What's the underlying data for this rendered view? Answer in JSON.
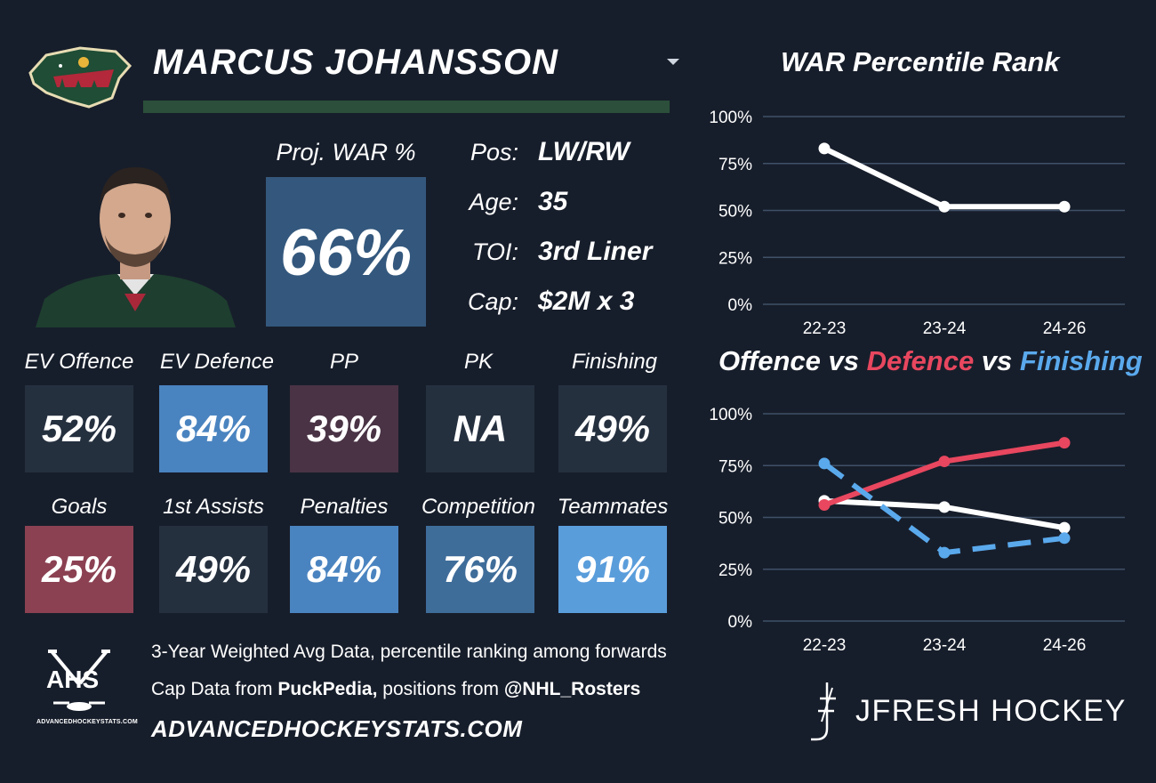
{
  "header": {
    "player_name": "MARCUS JOHANSSON",
    "team_logo_icon": "wild-logo-icon",
    "photo": "player-headshot"
  },
  "war": {
    "label": "Proj. WAR %",
    "value": "66%",
    "color": "#34587d"
  },
  "info": [
    {
      "label": "Pos:",
      "value": "LW/RW"
    },
    {
      "label": "Age:",
      "value": "35"
    },
    {
      "label": "TOI:",
      "value": "3rd Liner"
    },
    {
      "label": "Cap:",
      "value": "$2M x 3"
    }
  ],
  "stats_row1": [
    {
      "label": "EV Offence",
      "value": "52%",
      "color": "#25303f"
    },
    {
      "label": "EV Defence",
      "value": "84%",
      "color": "#4a84c0"
    },
    {
      "label": "PP",
      "value": "39%",
      "color": "#4a3345"
    },
    {
      "label": "PK",
      "value": "NA",
      "color": "#25303f"
    },
    {
      "label": "Finishing",
      "value": "49%",
      "color": "#25303f"
    }
  ],
  "stats_row2": [
    {
      "label": "Goals",
      "value": "25%",
      "color": "#8b4152"
    },
    {
      "label": "1st Assists",
      "value": "49%",
      "color": "#25303f"
    },
    {
      "label": "Penalties",
      "value": "84%",
      "color": "#4a84c0"
    },
    {
      "label": "Competition",
      "value": "76%",
      "color": "#3f6d9a"
    },
    {
      "label": "Teammates",
      "value": "91%",
      "color": "#5a9ddb"
    }
  ],
  "footer": {
    "line1": "3-Year Weighted Avg Data, percentile ranking among forwards",
    "line2_prefix": "Cap Data from ",
    "line2_bold1": "PuckPedia,",
    "line2_mid": " positions from ",
    "line2_bold2": "@NHL_Rosters",
    "url": "ADVANCEDHOCKEYSTATS.COM",
    "ahs_logo_text": "AHS",
    "ahs_logo_site": "ADVANCEDHOCKEYSTATS.COM",
    "brand": "JFRESH HOCKEY"
  },
  "chart_data": [
    {
      "type": "line",
      "title": "WAR Percentile Rank",
      "categories": [
        "22-23",
        "23-24",
        "24-26"
      ],
      "y_ticks": [
        "100%",
        "75%",
        "50%",
        "25%",
        "0%"
      ],
      "ylim": [
        0,
        100
      ],
      "series": [
        {
          "values": [
            83,
            52,
            52
          ],
          "color": "#ffffff",
          "dashed": false
        }
      ]
    },
    {
      "type": "line",
      "title_parts": [
        {
          "text": "Offence",
          "color": "#ffffff"
        },
        {
          "text": " vs ",
          "color": "#ffffff"
        },
        {
          "text": "Defence",
          "color": "#e8475f"
        },
        {
          "text": " vs ",
          "color": "#ffffff"
        },
        {
          "text": "Finishing",
          "color": "#5aa9ec"
        }
      ],
      "categories": [
        "22-23",
        "23-24",
        "24-26"
      ],
      "y_ticks": [
        "100%",
        "75%",
        "50%",
        "25%",
        "0%"
      ],
      "ylim": [
        0,
        100
      ],
      "series": [
        {
          "name": "Offence",
          "values": [
            58,
            55,
            45
          ],
          "color": "#ffffff",
          "dashed": false
        },
        {
          "name": "Defence",
          "values": [
            56,
            77,
            86
          ],
          "color": "#e8475f",
          "dashed": false
        },
        {
          "name": "Finishing",
          "values": [
            76,
            33,
            40
          ],
          "color": "#5aa9ec",
          "dashed": true
        }
      ]
    }
  ]
}
